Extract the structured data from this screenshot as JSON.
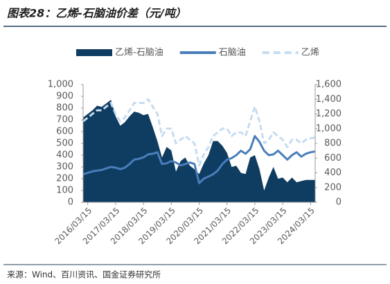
{
  "chart_data": {
    "type": "line",
    "title": "图表28：乙烯-石脑油价差（元/吨）",
    "source": "来源：Wind、百川资讯、国金证券研究所",
    "x": [
      "2016/01/15",
      "2016/03/15",
      "2016/05/15",
      "2016/07/15",
      "2016/09/15",
      "2016/11/15",
      "2017/01/15",
      "2017/03/15",
      "2017/05/15",
      "2017/07/15",
      "2017/09/15",
      "2017/11/15",
      "2018/01/15",
      "2018/03/15",
      "2018/05/15",
      "2018/07/15",
      "2018/09/15",
      "2018/11/15",
      "2019/01/15",
      "2019/03/15",
      "2019/05/15",
      "2019/07/15",
      "2019/09/15",
      "2019/11/15",
      "2020/01/15",
      "2020/03/15",
      "2020/05/15",
      "2020/07/15",
      "2020/09/15",
      "2020/11/15",
      "2021/01/15",
      "2021/03/15",
      "2021/05/15",
      "2021/07/15",
      "2021/09/15",
      "2021/11/15",
      "2022/01/15",
      "2022/03/15",
      "2022/05/15",
      "2022/07/15",
      "2022/09/15",
      "2022/11/15",
      "2023/01/15",
      "2023/03/15",
      "2023/05/15",
      "2023/07/15",
      "2023/09/15",
      "2023/11/15",
      "2024/01/15",
      "2024/03/15",
      "2024/05/15"
    ],
    "xticks": [
      "2016/03/15",
      "2017/03/15",
      "2018/03/15",
      "2019/03/15",
      "2020/03/15",
      "2021/03/15",
      "2022/03/15",
      "2023/03/15",
      "2024/03/15"
    ],
    "ylim": [
      0,
      1000
    ],
    "yticks": [
      0,
      100,
      200,
      300,
      400,
      500,
      600,
      700,
      800,
      900,
      {
        "value": 1000,
        "label": "1,000"
      }
    ],
    "y2lim": [
      0,
      1600
    ],
    "y2ticks": [
      0,
      200,
      400,
      600,
      800,
      {
        "value": 1000,
        "label": "1,000"
      },
      {
        "value": 1200,
        "label": "1,200"
      },
      {
        "value": 1400,
        "label": "1,400"
      },
      {
        "value": 1600,
        "label": "1,600"
      }
    ],
    "series": [
      {
        "name": "乙烯-石脑油",
        "type": "area",
        "color": "#0f3d62",
        "axis": "y",
        "values": [
          720,
          750,
          780,
          820,
          810,
          840,
          870,
          730,
          650,
          680,
          730,
          770,
          760,
          740,
          750,
          640,
          520,
          380,
          470,
          440,
          260,
          350,
          380,
          310,
          280,
          240,
          330,
          400,
          520,
          520,
          480,
          420,
          300,
          310,
          250,
          240,
          380,
          400,
          280,
          100,
          210,
          300,
          200,
          210,
          170,
          210,
          170,
          180,
          190,
          190,
          190
        ]
      },
      {
        "name": "石脑油",
        "type": "line",
        "color": "#4a7ebb",
        "axis": "y2",
        "dashed": false,
        "values": [
          380,
          400,
          420,
          430,
          440,
          460,
          480,
          470,
          450,
          470,
          520,
          580,
          590,
          610,
          650,
          660,
          680,
          520,
          530,
          560,
          540,
          500,
          520,
          540,
          520,
          260,
          320,
          350,
          380,
          430,
          520,
          580,
          600,
          640,
          700,
          660,
          720,
          900,
          820,
          700,
          640,
          650,
          700,
          640,
          580,
          640,
          680,
          620,
          660,
          680,
          690
        ]
      },
      {
        "name": "乙烯",
        "type": "line",
        "color": "#c6dcf0",
        "axis": "y2",
        "dashed": true,
        "values": [
          1100,
          1150,
          1200,
          1250,
          1250,
          1300,
          1350,
          1200,
          1100,
          1150,
          1250,
          1350,
          1350,
          1350,
          1400,
          1300,
          1200,
          900,
          1000,
          1000,
          800,
          850,
          900,
          850,
          800,
          500,
          650,
          750,
          900,
          950,
          1000,
          1000,
          900,
          950,
          950,
          900,
          1100,
          1300,
          1100,
          800,
          850,
          950,
          900,
          850,
          750,
          850,
          850,
          800,
          850,
          870,
          880
        ]
      }
    ]
  }
}
